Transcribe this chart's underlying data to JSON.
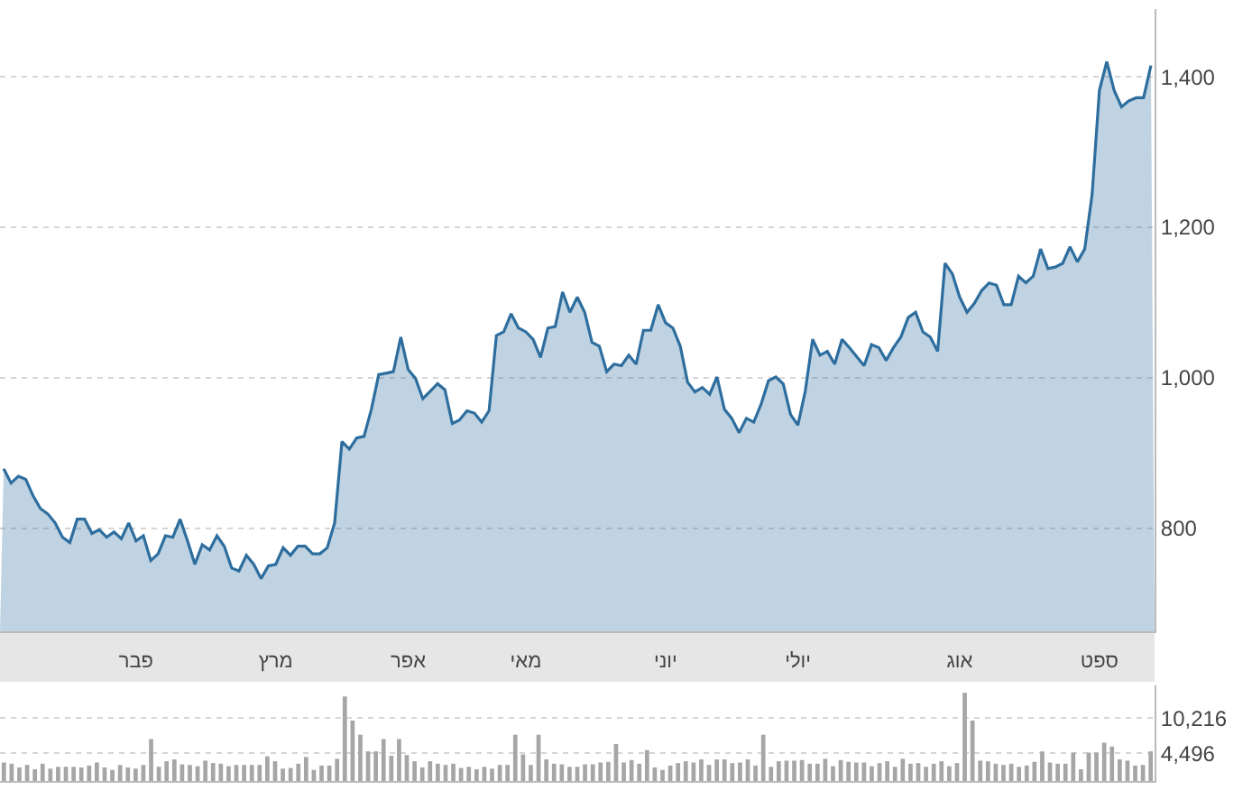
{
  "chart_data": [
    {
      "type": "area",
      "color": "#2e6e9e",
      "grid": "y",
      "categories": [
        null,
        null,
        null,
        null,
        null,
        null,
        null,
        null,
        null,
        null,
        null,
        null,
        null,
        null,
        null,
        null,
        null,
        null,
        "פבר",
        null,
        null,
        null,
        null,
        null,
        null,
        null,
        null,
        null,
        null,
        null,
        null,
        null,
        null,
        null,
        null,
        null,
        null,
        "מרץ",
        null,
        null,
        null,
        null,
        null,
        null,
        null,
        null,
        null,
        null,
        null,
        null,
        null,
        null,
        null,
        null,
        null,
        "אפר",
        null,
        null,
        null,
        null,
        null,
        null,
        null,
        null,
        null,
        null,
        null,
        null,
        null,
        null,
        null,
        "מאי",
        null,
        null,
        null,
        null,
        null,
        null,
        null,
        null,
        null,
        null,
        null,
        null,
        null,
        null,
        null,
        null,
        null,
        null,
        "יוני",
        null,
        null,
        null,
        null,
        null,
        null,
        null,
        null,
        null,
        null,
        null,
        null,
        null,
        null,
        null,
        null,
        null,
        "יולי",
        null,
        null,
        null,
        null,
        null,
        null,
        null,
        null,
        null,
        null,
        null,
        null,
        null,
        null,
        null,
        null,
        null,
        null,
        null,
        null,
        null,
        "אוג",
        null,
        null,
        null,
        null,
        null,
        null,
        null,
        null,
        null,
        null,
        null,
        null,
        null,
        null,
        null,
        null,
        null,
        null,
        "ספט",
        null,
        null,
        null,
        null,
        null,
        null,
        null
      ],
      "values": [
        879,
        860,
        869,
        865,
        843,
        826,
        819,
        807,
        788,
        781,
        812,
        812,
        793,
        798,
        788,
        795,
        786,
        807,
        783,
        790,
        757,
        766,
        790,
        788,
        812,
        783,
        752,
        778,
        771,
        790,
        776,
        747,
        743,
        764,
        752,
        733,
        750,
        752,
        774,
        764,
        776,
        776,
        766,
        766,
        774,
        807,
        915,
        905,
        920,
        922,
        958,
        1004,
        1006,
        1008,
        1054,
        1011,
        999,
        972,
        982,
        992,
        984,
        939,
        944,
        956,
        953,
        941,
        956,
        1056,
        1061,
        1085,
        1066,
        1061,
        1051,
        1027,
        1066,
        1068,
        1114,
        1087,
        1107,
        1087,
        1047,
        1042,
        1008,
        1018,
        1016,
        1030,
        1018,
        1063,
        1063,
        1097,
        1073,
        1066,
        1042,
        994,
        981,
        987,
        978,
        1001,
        958,
        946,
        927,
        946,
        941,
        965,
        996,
        1001,
        992,
        951,
        937,
        982,
        1051,
        1030,
        1035,
        1018,
        1051,
        1040,
        1028,
        1016,
        1044,
        1040,
        1023,
        1040,
        1054,
        1080,
        1087,
        1061,
        1054,
        1035,
        1152,
        1138,
        1107,
        1087,
        1099,
        1116,
        1126,
        1123,
        1097,
        1097,
        1135,
        1126,
        1135,
        1171,
        1145,
        1147,
        1152,
        1174,
        1154,
        1171,
        1243,
        1382,
        1420,
        1382,
        1360,
        1368,
        1372,
        1372,
        1415
      ],
      "ylim": [
        663,
        1490
      ],
      "yticks": [
        {
          "value": 800,
          "label": "800"
        },
        {
          "value": 1000,
          "label": "1,000"
        },
        {
          "value": 1200,
          "label": "1,200"
        },
        {
          "value": 1400,
          "label": "1,400"
        }
      ]
    },
    {
      "type": "bar",
      "color": "#a6a6a6",
      "grid": "y",
      "tick_labels": "y",
      "categories": [
        null,
        null,
        null,
        null,
        null,
        null,
        null,
        null,
        null,
        null,
        null,
        null,
        null,
        null,
        null,
        null,
        null,
        null,
        null,
        null,
        null,
        null,
        null,
        null,
        null,
        null,
        null,
        null,
        null,
        null,
        null,
        null,
        null,
        null,
        null,
        null,
        null,
        null,
        null,
        null,
        null,
        null,
        null,
        null,
        null,
        null,
        null,
        null,
        null,
        null,
        null,
        null,
        null,
        null,
        null,
        null,
        null,
        null,
        null,
        null,
        null,
        null,
        null,
        null,
        null,
        null,
        null,
        null,
        null,
        null,
        null,
        null,
        null,
        null,
        null,
        null,
        null,
        null,
        null,
        null,
        null,
        null,
        null,
        null,
        null,
        null,
        null,
        null,
        null,
        null,
        null,
        null,
        null,
        null,
        null,
        null,
        null,
        null,
        null,
        null,
        null,
        null,
        null,
        null,
        null,
        null,
        null,
        null,
        null,
        null,
        null,
        null,
        null,
        null,
        null,
        null,
        null,
        null,
        null,
        null,
        null,
        null,
        null,
        null,
        null,
        null,
        null,
        null,
        null,
        null,
        null,
        null,
        null,
        null,
        null,
        null,
        null,
        null,
        null,
        null,
        null,
        null,
        null,
        null,
        null,
        null,
        null,
        null,
        null
      ],
      "values": [
        3000,
        2800,
        2200,
        2600,
        1900,
        2800,
        2000,
        2300,
        2300,
        2300,
        2200,
        2500,
        3000,
        2200,
        1800,
        2600,
        2200,
        2000,
        2600,
        6800,
        2300,
        3200,
        3500,
        2700,
        2600,
        2400,
        3300,
        2900,
        2800,
        2400,
        2600,
        2600,
        2600,
        2600,
        4000,
        3200,
        2000,
        2100,
        2800,
        3900,
        1800,
        2500,
        2500,
        3600,
        13700,
        9800,
        7500,
        4800,
        4800,
        6800,
        4100,
        6800,
        4200,
        3200,
        2200,
        3200,
        2800,
        2600,
        2800,
        2100,
        2300,
        1900,
        2300,
        2000,
        2600,
        2600,
        7500,
        4300,
        2600,
        7500,
        3500,
        2800,
        2700,
        2300,
        2300,
        2700,
        2700,
        3000,
        3100,
        6000,
        3000,
        3400,
        2800,
        5000,
        2200,
        1800,
        2500,
        2900,
        3200,
        3000,
        3500,
        2600,
        3500,
        3500,
        2900,
        3000,
        3500,
        2500,
        7500,
        2300,
        3200,
        3300,
        3300,
        3400,
        2800,
        2800,
        3600,
        2400,
        3400,
        3100,
        3000,
        3000,
        2400,
        2900,
        3200,
        2300,
        3600,
        2800,
        2900,
        2300,
        2800,
        3200,
        2400,
        2900,
        14300,
        9800,
        3300,
        3200,
        2800,
        2600,
        2800,
        2300,
        2500,
        3100,
        4800,
        3000,
        2800,
        2800,
        4600,
        1900,
        4600,
        4600,
        6200,
        5600,
        3500,
        3300,
        2500,
        2600,
        4800
      ],
      "ylim": [
        0,
        15500
      ],
      "yticks": [
        {
          "value": 4496,
          "label": "4,496"
        },
        {
          "value": 10216,
          "label": "10,216"
        }
      ]
    }
  ]
}
